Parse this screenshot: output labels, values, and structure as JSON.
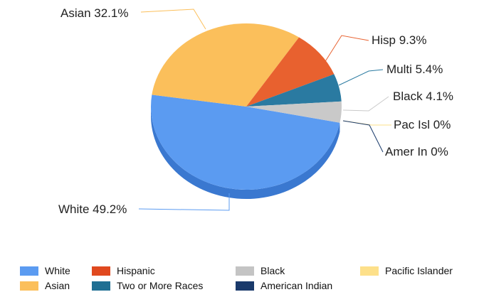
{
  "chart_data": {
    "type": "pie",
    "title": "",
    "slices": [
      {
        "name": "White",
        "value": 49.2,
        "label": "White 49.2%",
        "color": "#5b9bf1",
        "side_color": "#3a78d0"
      },
      {
        "name": "Asian",
        "value": 32.1,
        "label": "Asian 32.1%",
        "color": "#fbbf5b",
        "side_color": "#d9992f"
      },
      {
        "name": "Hispanic",
        "value": 9.3,
        "label": "Hisp 9.3%",
        "color": "#e8612f",
        "side_color": "#c4471a"
      },
      {
        "name": "Two or More Races",
        "value": 5.4,
        "label": "Multi 5.4%",
        "color": "#2a7aa1",
        "side_color": "#1d5b79"
      },
      {
        "name": "Black",
        "value": 4.1,
        "label": "Black 4.1%",
        "color": "#c9c9c9",
        "side_color": "#a3a3a3"
      },
      {
        "name": "Pacific Islander",
        "value": 0,
        "label": "Pac Isl 0%",
        "color": "#fde08a",
        "side_color": "#e8c660"
      },
      {
        "name": "American Indian",
        "value": 0,
        "label": "Amer In 0%",
        "color": "#1a3a6b",
        "side_color": "#112a4f"
      }
    ],
    "legend_position": "bottom"
  },
  "legend": [
    {
      "name": "White",
      "color": "#5b9bf1"
    },
    {
      "name": "Hispanic",
      "color": "#e0491f"
    },
    {
      "name": "Black",
      "color": "#c4c4c4"
    },
    {
      "name": "Pacific Islander",
      "color": "#fde08a"
    },
    {
      "name": "Asian",
      "color": "#fbbf5b"
    },
    {
      "name": "Two or More Races",
      "color": "#1f6f93"
    },
    {
      "name": "American Indian",
      "color": "#1a3a6b"
    }
  ]
}
